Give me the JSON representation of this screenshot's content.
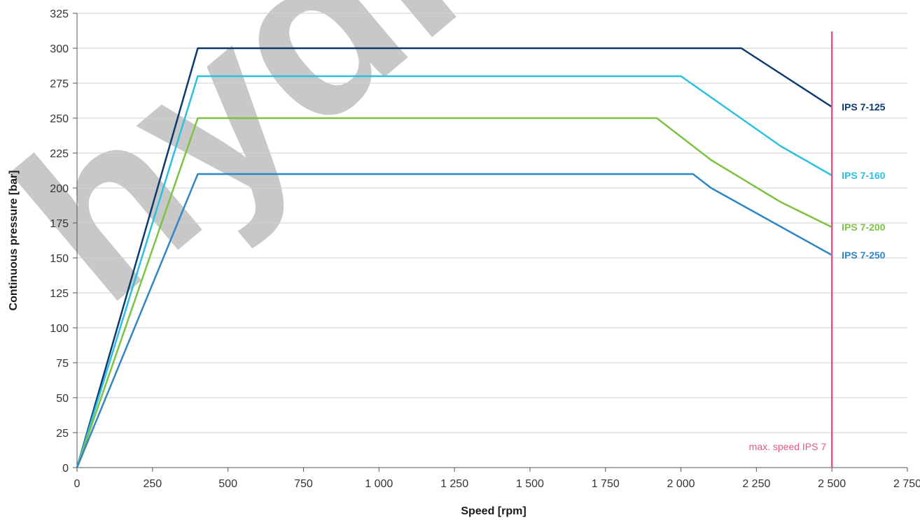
{
  "chart_data": {
    "type": "line",
    "xlabel": "Speed [rpm]",
    "ylabel": "Continuous pressure [bar]",
    "xlim": [
      0,
      2750
    ],
    "ylim": [
      0,
      325
    ],
    "x_ticks": [
      0,
      250,
      500,
      750,
      1000,
      1250,
      1500,
      1750,
      2000,
      2250,
      2500,
      2750
    ],
    "x_tick_labels": [
      "0",
      "250",
      "500",
      "750",
      "1 000",
      "1 250",
      "1 500",
      "1 750",
      "2 000",
      "2 250",
      "2 500",
      "2 750"
    ],
    "y_ticks": [
      0,
      25,
      50,
      75,
      100,
      125,
      150,
      175,
      200,
      225,
      250,
      275,
      300,
      325
    ],
    "y_tick_labels": [
      "0",
      "25",
      "50",
      "75",
      "100",
      "125",
      "150",
      "175",
      "200",
      "225",
      "250",
      "275",
      "300",
      "325"
    ],
    "grid": "horizontal",
    "series": [
      {
        "name": "IPS 7-125",
        "color": "#0d3a6e",
        "x": [
          0,
          400,
          2200,
          2500
        ],
        "y": [
          0,
          300,
          300,
          258
        ]
      },
      {
        "name": "IPS 7-160",
        "color": "#2bbfe0",
        "x": [
          0,
          400,
          2000,
          2330,
          2500
        ],
        "y": [
          0,
          280,
          280,
          230,
          209
        ]
      },
      {
        "name": "IPS 7-200",
        "color": "#7dc242",
        "x": [
          0,
          400,
          1920,
          2100,
          2330,
          2500
        ],
        "y": [
          0,
          250,
          250,
          220,
          190,
          172
        ]
      },
      {
        "name": "IPS 7-250",
        "color": "#2f86c4",
        "x": [
          0,
          400,
          2040,
          2100,
          2250,
          2500
        ],
        "y": [
          0,
          210,
          210,
          200,
          182,
          152
        ]
      }
    ],
    "marker": {
      "label": "max. speed IPS 7",
      "x": 2500,
      "y_top": 312,
      "color": "#e8538c"
    },
    "watermark": {
      "text": "hydro",
      "color": "#c8c8c8"
    }
  }
}
